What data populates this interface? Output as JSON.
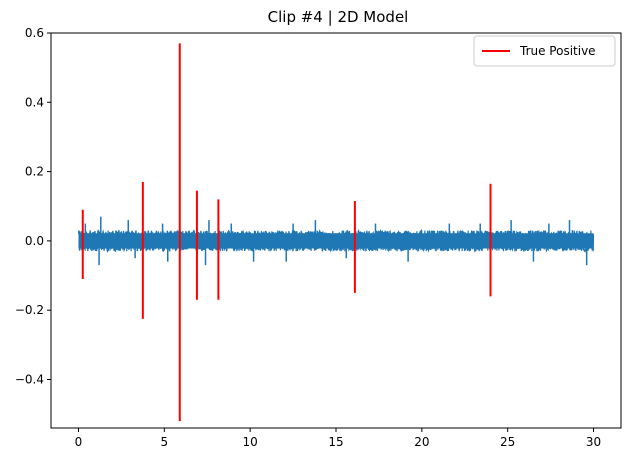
{
  "chart_data": {
    "type": "line",
    "title": "Clip #4 | 2D Model",
    "xlabel": "",
    "ylabel": "",
    "xlim": [
      -1.6,
      31.6
    ],
    "ylim": [
      -0.54,
      0.6
    ],
    "x_ticks": [
      0,
      5,
      10,
      15,
      20,
      25,
      30
    ],
    "x_tick_labels": [
      "0",
      "5",
      "10",
      "15",
      "20",
      "25",
      "30"
    ],
    "y_ticks": [
      -0.4,
      -0.2,
      0.0,
      0.2,
      0.4,
      0.6
    ],
    "y_tick_labels": [
      "−0.4",
      "−0.2",
      "0.0",
      "0.2",
      "0.4",
      "0.6"
    ],
    "grid": false,
    "legend_position": "top-right",
    "signal": {
      "color": "#1f77b4",
      "x_range": [
        0,
        30
      ],
      "envelope_upper": 0.03,
      "envelope_lower": -0.03,
      "outlier_spikes": [
        {
          "x": 0.4,
          "y": 0.05
        },
        {
          "x": 1.2,
          "y": -0.07
        },
        {
          "x": 1.3,
          "y": 0.07
        },
        {
          "x": 2.9,
          "y": 0.06
        },
        {
          "x": 3.3,
          "y": -0.05
        },
        {
          "x": 4.9,
          "y": 0.05
        },
        {
          "x": 5.2,
          "y": -0.06
        },
        {
          "x": 7.4,
          "y": -0.07
        },
        {
          "x": 7.6,
          "y": 0.06
        },
        {
          "x": 8.9,
          "y": 0.05
        },
        {
          "x": 10.2,
          "y": -0.06
        },
        {
          "x": 12.1,
          "y": -0.06
        },
        {
          "x": 12.5,
          "y": 0.05
        },
        {
          "x": 13.8,
          "y": 0.06
        },
        {
          "x": 15.6,
          "y": -0.05
        },
        {
          "x": 17.3,
          "y": 0.05
        },
        {
          "x": 19.2,
          "y": -0.06
        },
        {
          "x": 21.6,
          "y": 0.05
        },
        {
          "x": 23.4,
          "y": 0.05
        },
        {
          "x": 25.2,
          "y": 0.06
        },
        {
          "x": 26.5,
          "y": -0.06
        },
        {
          "x": 27.4,
          "y": 0.05
        },
        {
          "x": 28.6,
          "y": 0.06
        },
        {
          "x": 29.6,
          "y": -0.07
        }
      ]
    },
    "series": [
      {
        "name": "True Positive",
        "color": "#ff0000",
        "events": [
          {
            "x": 0.25,
            "ymin": -0.11,
            "ymax": 0.09
          },
          {
            "x": 3.75,
            "ymin": -0.225,
            "ymax": 0.17
          },
          {
            "x": 5.9,
            "ymin": -0.52,
            "ymax": 0.57
          },
          {
            "x": 6.9,
            "ymin": -0.17,
            "ymax": 0.145
          },
          {
            "x": 8.15,
            "ymin": -0.17,
            "ymax": 0.12
          },
          {
            "x": 16.1,
            "ymin": -0.15,
            "ymax": 0.115
          },
          {
            "x": 24.0,
            "ymin": -0.16,
            "ymax": 0.165
          }
        ]
      }
    ]
  }
}
